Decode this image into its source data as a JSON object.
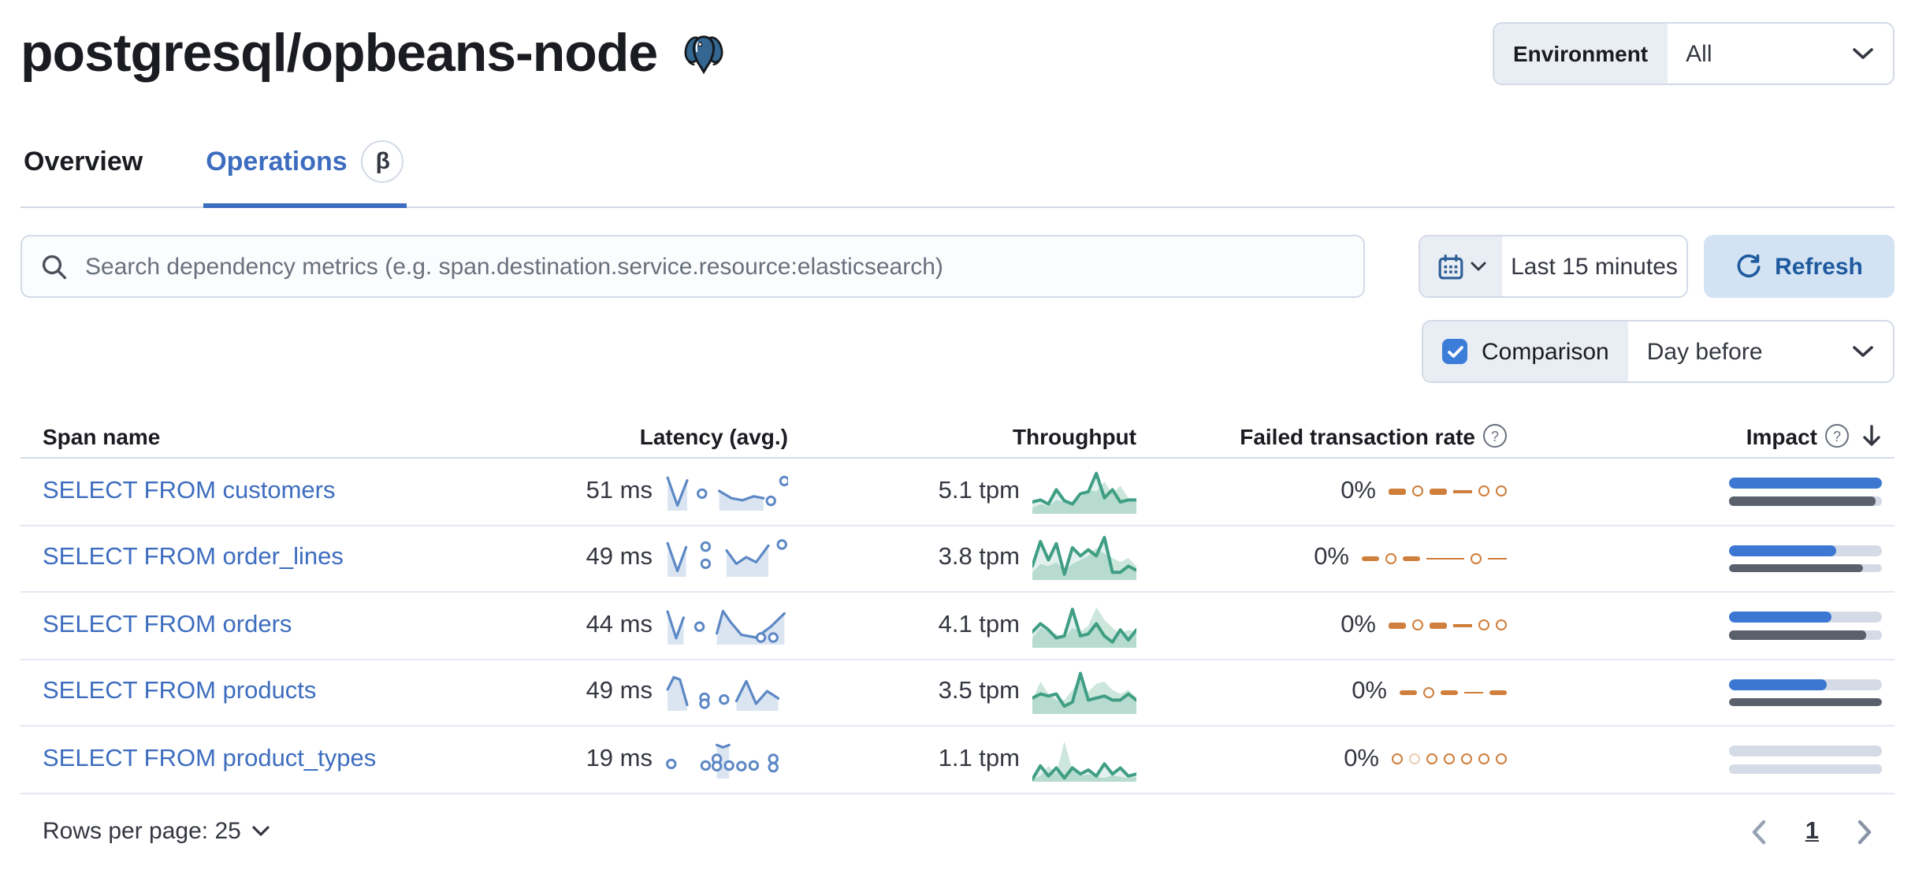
{
  "header": {
    "title": "postgresql/opbeans-node",
    "environment_label": "Environment",
    "environment_value": "All"
  },
  "tabs": [
    {
      "label": "Overview",
      "active": false
    },
    {
      "label": "Operations",
      "active": true,
      "beta": "β"
    }
  ],
  "toolbar": {
    "search_placeholder": "Search dependency metrics (e.g. span.destination.service.resource:elasticsearch)",
    "time_range": "Last 15 minutes",
    "refresh_label": "Refresh"
  },
  "comparison": {
    "label": "Comparison",
    "value": "Day before",
    "checked": true
  },
  "table": {
    "columns": {
      "span_name": "Span name",
      "latency": "Latency (avg.)",
      "throughput": "Throughput",
      "failed_rate": "Failed transaction rate",
      "impact": "Impact"
    },
    "rows": [
      {
        "name": "SELECT FROM customers",
        "latency": "51 ms",
        "throughput": "5.1 tpm",
        "failed_rate": "0%",
        "impact": {
          "current": 100,
          "previous": 96
        },
        "latency_spark": {
          "segments": [
            [
              [
                0.02,
                0.9
              ],
              [
                0.1,
                0.06
              ],
              [
                0.18,
                0.82
              ]
            ],
            [
              [
                0.44,
                0.5
              ],
              [
                0.54,
                0.28
              ],
              [
                0.63,
                0.22
              ],
              [
                0.72,
                0.34
              ],
              [
                0.8,
                0.28
              ]
            ]
          ],
          "dots": [
            [
              0.3,
              0.42
            ],
            [
              0.86,
              0.2
            ],
            [
              0.97,
              0.8
            ]
          ]
        },
        "throughput_spark": {
          "current": [
            0.25,
            0.3,
            0.2,
            0.55,
            0.28,
            0.2,
            0.45,
            0.5,
            0.95,
            0.35,
            0.55,
            0.25,
            0.3,
            0.3
          ],
          "previous": [
            0.1,
            0.2,
            0.15,
            0.3,
            0.25,
            0.2,
            0.35,
            0.55,
            0.5,
            0.75,
            0.45,
            0.65,
            0.35,
            0.25
          ]
        },
        "failed_spark": [
          "dash",
          "dot",
          "dash",
          "line",
          "dot",
          "dot"
        ]
      },
      {
        "name": "SELECT FROM order_lines",
        "latency": "49 ms",
        "throughput": "3.8 tpm",
        "failed_rate": "0%",
        "impact": {
          "current": 70,
          "previous": 88
        },
        "latency_spark": {
          "segments": [
            [
              [
                0.02,
                0.92
              ],
              [
                0.1,
                0.08
              ],
              [
                0.17,
                0.8
              ]
            ],
            [
              [
                0.5,
                0.7
              ],
              [
                0.58,
                0.3
              ],
              [
                0.66,
                0.5
              ],
              [
                0.74,
                0.35
              ],
              [
                0.84,
                0.85
              ]
            ]
          ],
          "dots": [
            [
              0.33,
              0.82
            ],
            [
              0.33,
              0.3
            ],
            [
              0.95,
              0.88
            ]
          ]
        },
        "throughput_spark": {
          "current": [
            0.3,
            0.9,
            0.45,
            0.85,
            0.1,
            0.75,
            0.55,
            0.7,
            0.55,
            1.0,
            0.15,
            0.15,
            0.3,
            0.2
          ],
          "previous": [
            0.15,
            0.35,
            0.3,
            0.4,
            0.2,
            0.35,
            0.45,
            0.55,
            0.75,
            0.6,
            0.5,
            0.4,
            0.5,
            0.3
          ]
        },
        "failed_spark": [
          "dash",
          "dot",
          "dash",
          "longline",
          "dot",
          "line"
        ]
      },
      {
        "name": "SELECT FROM orders",
        "latency": "44 ms",
        "throughput": "4.1 tpm",
        "failed_rate": "0%",
        "impact": {
          "current": 67,
          "previous": 90
        },
        "latency_spark": {
          "segments": [
            [
              [
                0.02,
                0.9
              ],
              [
                0.09,
                0.1
              ],
              [
                0.15,
                0.72
              ]
            ],
            [
              [
                0.42,
                0.25
              ],
              [
                0.47,
                0.92
              ],
              [
                0.53,
                0.6
              ],
              [
                0.62,
                0.2
              ],
              [
                0.74,
                0.12
              ],
              [
                0.86,
                0.45
              ],
              [
                0.97,
                0.85
              ]
            ]
          ],
          "dots": [
            [
              0.28,
              0.45
            ],
            [
              0.78,
              0.12
            ],
            [
              0.88,
              0.12
            ]
          ]
        },
        "throughput_spark": {
          "current": [
            0.35,
            0.55,
            0.4,
            0.2,
            0.25,
            0.9,
            0.25,
            0.3,
            0.55,
            0.25,
            0.1,
            0.4,
            0.15,
            0.4
          ],
          "previous": [
            0.2,
            0.45,
            0.35,
            0.3,
            0.2,
            0.45,
            0.35,
            0.5,
            0.95,
            0.65,
            0.45,
            0.3,
            0.4,
            0.35
          ]
        },
        "failed_spark": [
          "dash",
          "dot",
          "dash",
          "line",
          "dot",
          "dot"
        ]
      },
      {
        "name": "SELECT FROM products",
        "latency": "49 ms",
        "throughput": "3.5 tpm",
        "failed_rate": "0%",
        "impact": {
          "current": 64,
          "previous": 100
        },
        "latency_spark": {
          "segments": [
            [
              [
                0.02,
                0.55
              ],
              [
                0.07,
                0.92
              ],
              [
                0.12,
                0.85
              ],
              [
                0.18,
                0.08
              ]
            ],
            [
              [
                0.58,
                0.2
              ],
              [
                0.66,
                0.8
              ],
              [
                0.74,
                0.12
              ],
              [
                0.83,
                0.5
              ],
              [
                0.92,
                0.28
              ]
            ]
          ],
          "dots": [
            [
              0.32,
              0.3
            ],
            [
              0.32,
              0.12
            ],
            [
              0.48,
              0.25
            ]
          ]
        },
        "throughput_spark": {
          "current": [
            0.35,
            0.45,
            0.4,
            0.45,
            0.15,
            0.25,
            0.95,
            0.3,
            0.35,
            0.4,
            0.3,
            0.3,
            0.45,
            0.3
          ],
          "previous": [
            0.3,
            0.75,
            0.45,
            0.3,
            0.3,
            0.55,
            0.85,
            0.5,
            0.7,
            0.75,
            0.55,
            0.45,
            0.55,
            0.35
          ]
        },
        "failed_spark": [
          "dash",
          "dot",
          "dash",
          "line",
          "dash"
        ]
      },
      {
        "name": "SELECT FROM product_types",
        "latency": "19 ms",
        "throughput": "1.1 tpm",
        "failed_rate": "0%",
        "impact": {
          "current": 0,
          "previous": 0
        },
        "latency_spark": {
          "segments": [
            [
              [
                0.42,
                0.92
              ],
              [
                0.47,
                0.85
              ],
              [
                0.52,
                0.92
              ]
            ]
          ],
          "dots": [
            [
              0.05,
              0.35
            ],
            [
              0.33,
              0.3
            ],
            [
              0.42,
              0.5
            ],
            [
              0.42,
              0.28
            ],
            [
              0.52,
              0.3
            ],
            [
              0.62,
              0.28
            ],
            [
              0.72,
              0.3
            ],
            [
              0.88,
              0.5
            ],
            [
              0.88,
              0.25
            ]
          ]
        },
        "throughput_spark": {
          "current": [
            0.02,
            0.35,
            0.1,
            0.3,
            0.05,
            0.3,
            0.15,
            0.25,
            0.1,
            0.4,
            0.15,
            0.3,
            0.1,
            0.15
          ],
          "previous": [
            0.02,
            0.1,
            0.35,
            0.15,
            0.95,
            0.25,
            0.1,
            0.15,
            0.08,
            0.05,
            0.12,
            0.08,
            0.05,
            0.08
          ]
        },
        "failed_spark": [
          "dot",
          "dotlight",
          "dot",
          "dot",
          "dot",
          "dot",
          "dot"
        ]
      }
    ]
  },
  "pagination": {
    "rows_per_page": "Rows per page: 25",
    "current_page": "1"
  },
  "icons": [
    "postgresql-elephant-icon",
    "search-icon",
    "calendar-icon",
    "chevron-down-icon",
    "refresh-icon",
    "question-icon",
    "sort-descending-icon",
    "chevron-left-icon",
    "chevron-right-icon",
    "beta-badge",
    "checkbox-check-icon"
  ],
  "colors": {
    "link_blue": "#3d6dbf",
    "refresh_bg": "#d3e3f4",
    "refresh_text": "#1e5a9e",
    "latency_line": "#5c88c5",
    "throughput_line": "#3f9e83",
    "throughput_prev_fill": "#cde7dc",
    "failed_orange": "#cf7e3b",
    "impact_current": "#3c77d2",
    "impact_previous": "#5a616d",
    "bar_track": "#d5dbe6",
    "control_border": "#d3dae6",
    "checkbox_blue": "#3b7dd8",
    "postgres_blue": "#336791"
  }
}
